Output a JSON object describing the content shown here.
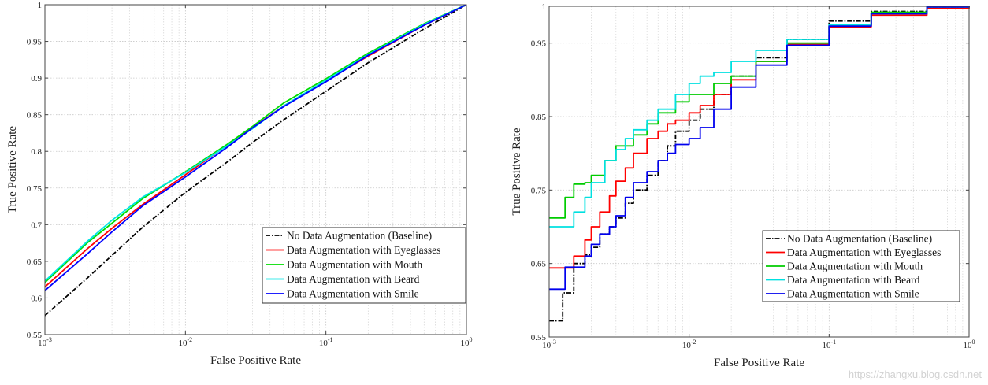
{
  "watermark": "https://zhangxu.blog.csdn.net",
  "chart_data": [
    {
      "type": "line",
      "xscale": "log",
      "xlim": [
        0.001,
        1
      ],
      "ylim": [
        0.55,
        1
      ],
      "xlabel": "False Positive Rate",
      "ylabel": "True Positive Rate",
      "xticks": [
        {
          "value": 0.001,
          "base": "10",
          "exp": "-3"
        },
        {
          "value": 0.01,
          "base": "10",
          "exp": "-2"
        },
        {
          "value": 0.1,
          "base": "10",
          "exp": "-1"
        },
        {
          "value": 1,
          "base": "10",
          "exp": "0"
        }
      ],
      "yticks": [
        {
          "value": 0.55,
          "label": "0.55"
        },
        {
          "value": 0.6,
          "label": "0.6"
        },
        {
          "value": 0.65,
          "label": "0.65"
        },
        {
          "value": 0.7,
          "label": "0.7"
        },
        {
          "value": 0.75,
          "label": "0.75"
        },
        {
          "value": 0.8,
          "label": "0.8"
        },
        {
          "value": 0.85,
          "label": "0.85"
        },
        {
          "value": 0.9,
          "label": "0.9"
        },
        {
          "value": 0.95,
          "label": "0.95"
        },
        {
          "value": 1,
          "label": "1"
        }
      ],
      "grid": true,
      "legend_position": "bottom-right",
      "series": [
        {
          "name": "No Data Augmentation (Baseline)",
          "color": "#000000",
          "dash": "dashdot",
          "x": [
            0.001,
            0.002,
            0.003,
            0.005,
            0.01,
            0.02,
            0.03,
            0.05,
            0.1,
            0.2,
            0.5,
            1
          ],
          "y": [
            0.576,
            0.627,
            0.658,
            0.697,
            0.744,
            0.786,
            0.812,
            0.843,
            0.882,
            0.921,
            0.967,
            1.0
          ]
        },
        {
          "name": "Data Augmentation with Eyeglasses",
          "color": "#ff0000",
          "dash": "solid",
          "x": [
            0.001,
            0.002,
            0.003,
            0.005,
            0.01,
            0.02,
            0.03,
            0.05,
            0.1,
            0.2,
            0.5,
            1
          ],
          "y": [
            0.615,
            0.667,
            0.695,
            0.728,
            0.768,
            0.809,
            0.832,
            0.862,
            0.896,
            0.93,
            0.972,
            1.0
          ]
        },
        {
          "name": "Data Augmentation with Mouth",
          "color": "#00dd00",
          "dash": "solid",
          "x": [
            0.001,
            0.002,
            0.003,
            0.005,
            0.01,
            0.02,
            0.03,
            0.05,
            0.1,
            0.2,
            0.5,
            1
          ],
          "y": [
            0.621,
            0.675,
            0.702,
            0.736,
            0.772,
            0.81,
            0.834,
            0.866,
            0.899,
            0.934,
            0.974,
            1.0
          ]
        },
        {
          "name": "Data Augmentation with Beard",
          "color": "#00e5e5",
          "dash": "solid",
          "x": [
            0.001,
            0.002,
            0.003,
            0.005,
            0.01,
            0.02,
            0.03,
            0.05,
            0.1,
            0.2,
            0.5,
            1
          ],
          "y": [
            0.623,
            0.677,
            0.706,
            0.738,
            0.771,
            0.808,
            0.831,
            0.862,
            0.897,
            0.932,
            0.973,
            1.0
          ]
        },
        {
          "name": "Data Augmentation with Smile",
          "color": "#0000ff",
          "dash": "solid",
          "x": [
            0.001,
            0.002,
            0.003,
            0.005,
            0.01,
            0.02,
            0.03,
            0.05,
            0.1,
            0.2,
            0.5,
            1
          ],
          "y": [
            0.61,
            0.66,
            0.69,
            0.726,
            0.765,
            0.806,
            0.832,
            0.861,
            0.895,
            0.931,
            0.972,
            1.0
          ]
        }
      ]
    },
    {
      "type": "line",
      "xscale": "log",
      "xlim": [
        0.001,
        1
      ],
      "ylim": [
        0.55,
        1
      ],
      "xlabel": "False Positive Rate",
      "ylabel": "True Positive Rate",
      "xticks": [
        {
          "value": 0.001,
          "base": "10",
          "exp": "-3"
        },
        {
          "value": 0.01,
          "base": "10",
          "exp": "-2"
        },
        {
          "value": 0.1,
          "base": "10",
          "exp": "-1"
        },
        {
          "value": 1,
          "base": "10",
          "exp": "0"
        }
      ],
      "yticks": [
        {
          "value": 0.55,
          "label": "0.55"
        },
        {
          "value": 0.65,
          "label": "0.65"
        },
        {
          "value": 0.75,
          "label": "0.75"
        },
        {
          "value": 0.85,
          "label": "0.85"
        },
        {
          "value": 0.95,
          "label": "0.95"
        },
        {
          "value": 1,
          "label": "1"
        }
      ],
      "grid": true,
      "legend_position": "bottom-right",
      "series": [
        {
          "name": "No Data Augmentation (Baseline)",
          "color": "#000000",
          "dash": "dashdot",
          "step": true,
          "x": [
            0.001,
            0.00125,
            0.0015,
            0.0018,
            0.002,
            0.0023,
            0.0027,
            0.003,
            0.0035,
            0.004,
            0.005,
            0.006,
            0.007,
            0.008,
            0.01,
            0.012,
            0.015,
            0.02,
            0.03,
            0.05,
            0.1,
            0.2,
            0.5,
            1
          ],
          "y": [
            0.572,
            0.61,
            0.65,
            0.662,
            0.672,
            0.69,
            0.7,
            0.712,
            0.732,
            0.75,
            0.77,
            0.79,
            0.81,
            0.83,
            0.845,
            0.86,
            0.88,
            0.905,
            0.93,
            0.955,
            0.98,
            0.993,
            0.999,
            1.0
          ]
        },
        {
          "name": "Data Augmentation with Eyeglasses",
          "color": "#ff0000",
          "dash": "solid",
          "step": true,
          "x": [
            0.001,
            0.0015,
            0.0018,
            0.002,
            0.0023,
            0.0027,
            0.003,
            0.0035,
            0.004,
            0.005,
            0.006,
            0.007,
            0.008,
            0.01,
            0.012,
            0.015,
            0.02,
            0.03,
            0.05,
            0.1,
            0.2,
            0.5,
            1
          ],
          "y": [
            0.644,
            0.66,
            0.682,
            0.7,
            0.72,
            0.742,
            0.762,
            0.78,
            0.8,
            0.82,
            0.83,
            0.84,
            0.845,
            0.855,
            0.865,
            0.88,
            0.9,
            0.925,
            0.948,
            0.972,
            0.988,
            0.997,
            1.0
          ]
        },
        {
          "name": "Data Augmentation with Mouth",
          "color": "#00cc00",
          "dash": "solid",
          "step": true,
          "x": [
            0.001,
            0.0013,
            0.0015,
            0.0018,
            0.002,
            0.0025,
            0.003,
            0.004,
            0.005,
            0.006,
            0.008,
            0.01,
            0.015,
            0.02,
            0.03,
            0.05,
            0.1,
            0.2,
            0.5,
            1
          ],
          "y": [
            0.712,
            0.74,
            0.758,
            0.76,
            0.77,
            0.79,
            0.81,
            0.825,
            0.84,
            0.855,
            0.87,
            0.88,
            0.895,
            0.905,
            0.925,
            0.95,
            0.975,
            0.992,
            0.999,
            1.0
          ]
        },
        {
          "name": "Data Augmentation with Beard",
          "color": "#00e0e0",
          "dash": "solid",
          "step": true,
          "x": [
            0.001,
            0.0015,
            0.0018,
            0.002,
            0.0025,
            0.003,
            0.0035,
            0.004,
            0.005,
            0.006,
            0.008,
            0.01,
            0.012,
            0.015,
            0.02,
            0.03,
            0.05,
            0.1,
            0.2,
            0.5,
            1
          ],
          "y": [
            0.7,
            0.72,
            0.74,
            0.76,
            0.79,
            0.805,
            0.82,
            0.832,
            0.845,
            0.86,
            0.88,
            0.895,
            0.905,
            0.91,
            0.925,
            0.94,
            0.955,
            0.975,
            0.99,
            0.999,
            1.0
          ]
        },
        {
          "name": "Data Augmentation with Smile",
          "color": "#0000ee",
          "dash": "solid",
          "step": true,
          "x": [
            0.001,
            0.0013,
            0.0018,
            0.002,
            0.0023,
            0.0027,
            0.003,
            0.0035,
            0.004,
            0.005,
            0.006,
            0.007,
            0.008,
            0.01,
            0.012,
            0.015,
            0.02,
            0.03,
            0.05,
            0.1,
            0.2,
            0.5,
            1
          ],
          "y": [
            0.615,
            0.645,
            0.66,
            0.676,
            0.69,
            0.7,
            0.715,
            0.74,
            0.76,
            0.775,
            0.79,
            0.8,
            0.812,
            0.82,
            0.835,
            0.86,
            0.89,
            0.92,
            0.947,
            0.973,
            0.99,
            0.999,
            1.0
          ]
        }
      ]
    }
  ]
}
